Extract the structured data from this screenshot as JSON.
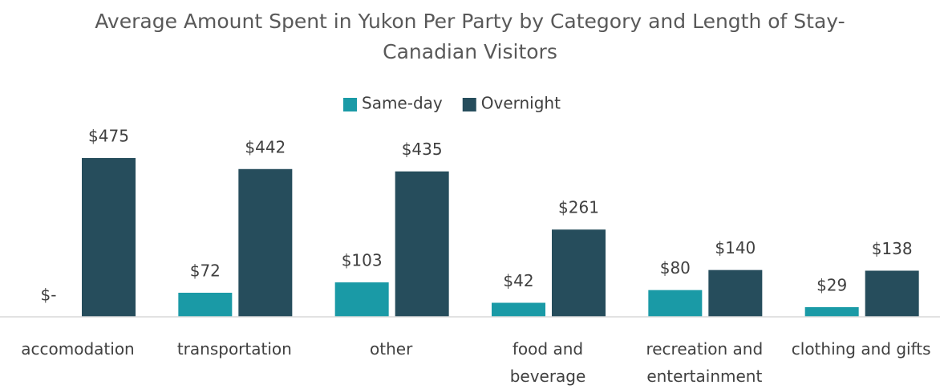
{
  "chart_data": {
    "type": "bar",
    "title": "Average Amount Spent in Yukon Per Party by Category and Length of Stay- Canadian Visitors",
    "categories": [
      "accomodation",
      "transportation",
      "other",
      "food and beverage",
      "recreation and entertainment",
      "clothing and gifts"
    ],
    "series": [
      {
        "name": "Same-day",
        "color": "#1a9aa6",
        "values": [
          0,
          72,
          103,
          42,
          80,
          29
        ],
        "value_labels": [
          "$-",
          "$72",
          "$103",
          "$42",
          "$80",
          "$29"
        ]
      },
      {
        "name": "Overnight",
        "color": "#264d5c",
        "values": [
          475,
          442,
          435,
          261,
          140,
          138
        ],
        "value_labels": [
          "$475",
          "$442",
          "$435",
          "$261",
          "$140",
          "$138"
        ]
      }
    ],
    "legend": "top"
  }
}
